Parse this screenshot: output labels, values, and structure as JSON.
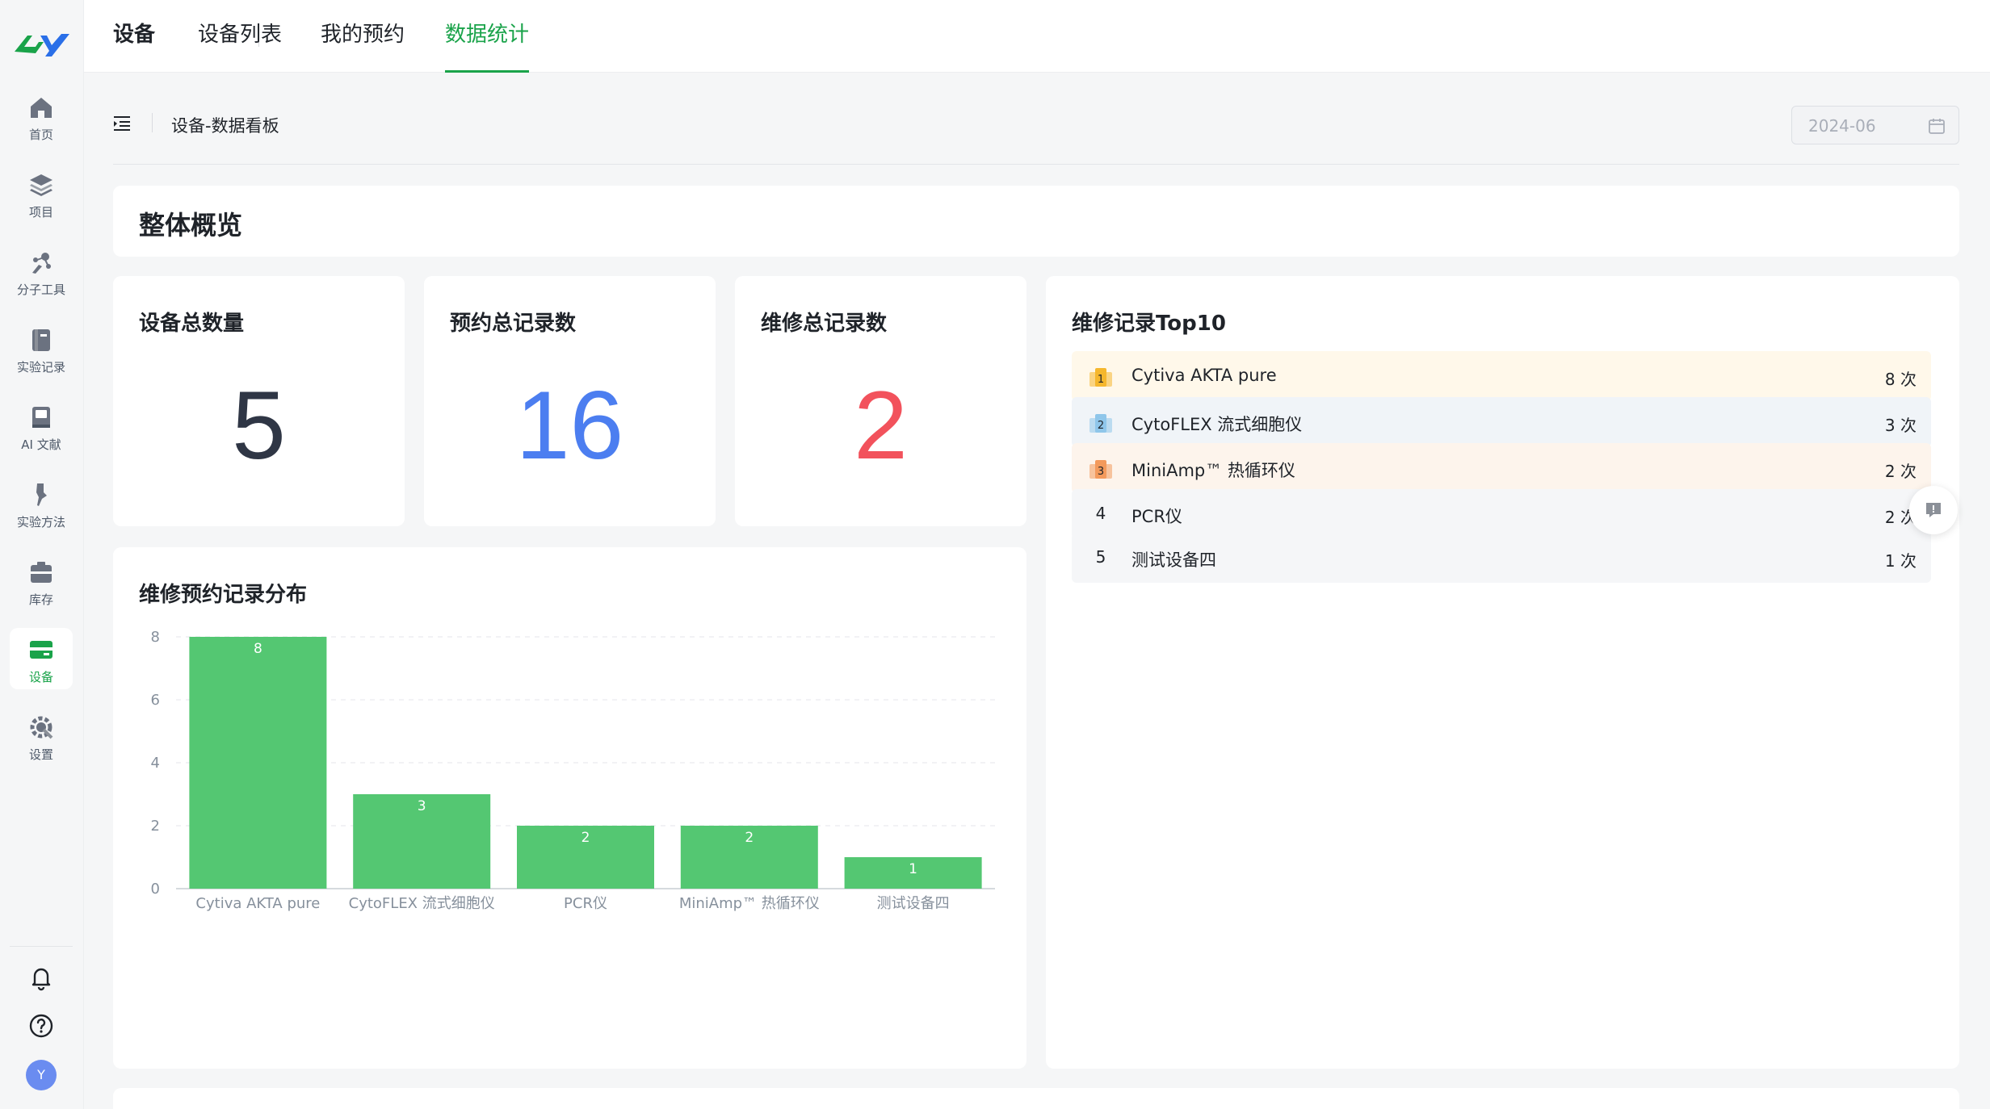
{
  "sidebar": {
    "items": [
      {
        "label": "首页",
        "icon": "home-icon"
      },
      {
        "label": "项目",
        "icon": "layers-icon"
      },
      {
        "label": "分子工具",
        "icon": "molecule-icon"
      },
      {
        "label": "实验记录",
        "icon": "notebook-icon"
      },
      {
        "label": "AI 文献",
        "icon": "book-icon"
      },
      {
        "label": "实验方法",
        "icon": "pipette-icon"
      },
      {
        "label": "库存",
        "icon": "box-icon"
      },
      {
        "label": "设备",
        "icon": "device-icon"
      },
      {
        "label": "设置",
        "icon": "gear-icon"
      }
    ],
    "active_index": 7,
    "avatar_initial": "Y"
  },
  "topbar": {
    "tabs": [
      {
        "label": "设备"
      },
      {
        "label": "设备列表"
      },
      {
        "label": "我的预约"
      },
      {
        "label": "数据统计"
      }
    ],
    "active_index": 3
  },
  "breadcrumb": "设备-数据看板",
  "date_picker": {
    "value": "2024-06"
  },
  "overview_title": "整体概览",
  "stats": [
    {
      "label": "设备总数量",
      "value": "5",
      "color": "#2f3645"
    },
    {
      "label": "预约总记录数",
      "value": "16",
      "color": "#4c7ef0"
    },
    {
      "label": "维修总记录数",
      "value": "2",
      "color": "#f2525c"
    }
  ],
  "chart_title": "维修预约记录分布",
  "chart_data": {
    "type": "bar",
    "title": "维修预约记录分布",
    "categories": [
      "Cytiva AKTA pure",
      "CytoFLEX 流式细胞仪",
      "PCR仪",
      "MiniAmp™ 热循环仪",
      "测试设备四"
    ],
    "values": [
      8,
      3,
      2,
      2,
      1
    ],
    "yticks": [
      "0",
      "2",
      "4",
      "6",
      "8"
    ],
    "ylim": [
      0,
      8
    ],
    "grid": true,
    "color": "#54c772"
  },
  "top10": {
    "title": "维修记录Top10",
    "items": [
      {
        "rank": "1",
        "name": "Cytiva AKTA pure",
        "count": "8 次",
        "bg": "#fff8ea",
        "medal": "#f5b72d"
      },
      {
        "rank": "2",
        "name": "CytoFLEX 流式细胞仪",
        "count": "3 次",
        "bg": "#f0f4f8",
        "medal": "#8fc6ea"
      },
      {
        "rank": "3",
        "name": "MiniAmp™ 热循环仪",
        "count": "2 次",
        "bg": "#fdf4ec",
        "medal": "#f39a5c"
      },
      {
        "rank": "4",
        "name": "PCR仪",
        "count": "2 次",
        "bg": "#f5f6f8",
        "medal": ""
      },
      {
        "rank": "5",
        "name": "测试设备四",
        "count": "1 次",
        "bg": "#f5f6f8",
        "medal": ""
      }
    ]
  }
}
